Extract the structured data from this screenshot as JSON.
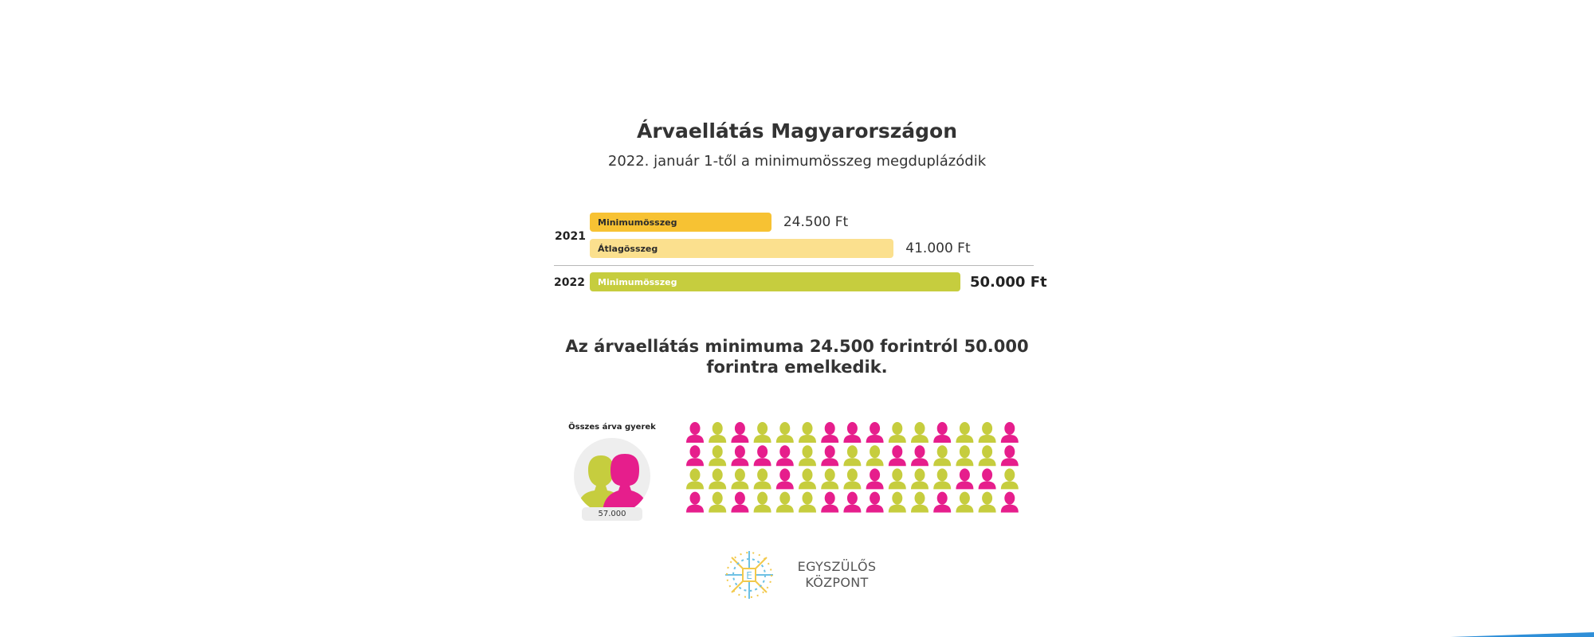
{
  "title": "Árvaellátás Magyarországon",
  "subtitle": "2022. január 1-től a minimumösszeg megduplázódik",
  "chart_data": {
    "type": "bar",
    "orientation": "horizontal",
    "bars": [
      {
        "year": "2021",
        "label": "Minimumösszeg",
        "value": 24500,
        "value_label": "24.500 Ft",
        "color": "#f7c233"
      },
      {
        "year": "2021",
        "label": "Átlagösszeg",
        "value": 41000,
        "value_label": "41.000 Ft",
        "color": "#fbe08e"
      },
      {
        "year": "2022",
        "label": "Minimumösszeg",
        "value": 50000,
        "value_label": "50.000 Ft",
        "color": "#c6cd3e"
      }
    ],
    "year_labels": [
      "2021",
      "2022"
    ],
    "unit": "Ft",
    "xlim": [
      0,
      50000
    ]
  },
  "statement": "Az árvaellátás minimuma 24.500 forintról 50.000 forintra emelkedik.",
  "orphans": {
    "label": "Összes árva gyerek",
    "count": "57.000",
    "grid_colors": [
      "PGPGGGPPPGGPGGP",
      "PGPPPGPGGPPGGGP",
      "GGGGPGGGPGGGPPG",
      "PGPGGGPPPGGPGGP"
    ],
    "pink": "#e61e8c",
    "green": "#c6cd3e"
  },
  "logo": {
    "line1": "EGYSZÜLŐS",
    "line2": "KÖZPONT",
    "icon": "snowflake-logo-icon"
  },
  "colors": {
    "accent_blue": "#2f8fd8"
  }
}
